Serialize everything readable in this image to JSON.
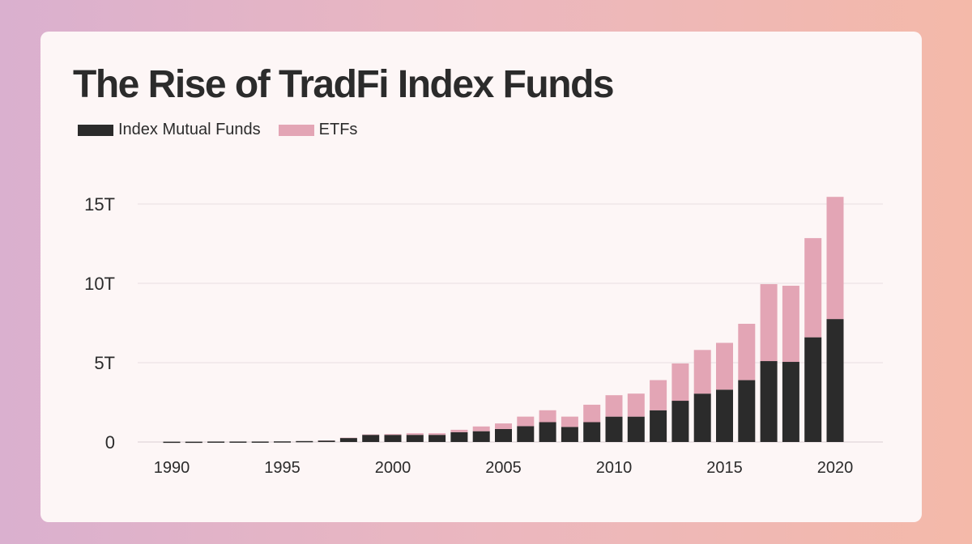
{
  "title": "The Rise of TradFi Index Funds",
  "legend": [
    {
      "label": "Index Mutual Funds",
      "color": "#2b2b2b"
    },
    {
      "label": "ETFs",
      "color": "#e3a5b5"
    }
  ],
  "chart_data": {
    "type": "bar",
    "stacked": true,
    "title": "The Rise of TradFi Index Funds",
    "xlabel": "",
    "ylabel": "",
    "ylim": [
      0,
      15.5
    ],
    "y_ticks": [
      {
        "value": 0,
        "label": "0"
      },
      {
        "value": 5,
        "label": "5T"
      },
      {
        "value": 10,
        "label": "10T"
      },
      {
        "value": 15,
        "label": "15T"
      }
    ],
    "x_tick_labels": [
      "1990",
      "1995",
      "2000",
      "2005",
      "2010",
      "2015",
      "2020"
    ],
    "categories": [
      1990,
      1991,
      1992,
      1993,
      1994,
      1995,
      1996,
      1997,
      1998,
      1999,
      2000,
      2001,
      2002,
      2003,
      2004,
      2005,
      2006,
      2007,
      2008,
      2009,
      2010,
      2011,
      2012,
      2013,
      2014,
      2015,
      2016,
      2017,
      2018,
      2019,
      2020
    ],
    "series": [
      {
        "name": "Index Mutual Funds",
        "color": "#2b2b2b",
        "values": [
          0.02,
          0.02,
          0.03,
          0.03,
          0.03,
          0.04,
          0.06,
          0.09,
          0.25,
          0.45,
          0.45,
          0.45,
          0.45,
          0.62,
          0.68,
          0.82,
          1.0,
          1.25,
          0.95,
          1.25,
          1.6,
          1.6,
          2.0,
          2.6,
          3.05,
          3.3,
          3.9,
          5.1,
          5.05,
          6.6,
          7.75
        ]
      },
      {
        "name": "ETFs",
        "color": "#e3a5b5",
        "values": [
          0.0,
          0.0,
          0.0,
          0.0,
          0.0,
          0.0,
          0.0,
          0.01,
          0.02,
          0.03,
          0.05,
          0.1,
          0.1,
          0.15,
          0.3,
          0.35,
          0.6,
          0.75,
          0.65,
          1.1,
          1.35,
          1.45,
          1.9,
          2.35,
          2.75,
          2.95,
          3.55,
          4.85,
          4.8,
          6.25,
          7.7
        ]
      }
    ],
    "grid": true,
    "legend_position": "top-left"
  }
}
